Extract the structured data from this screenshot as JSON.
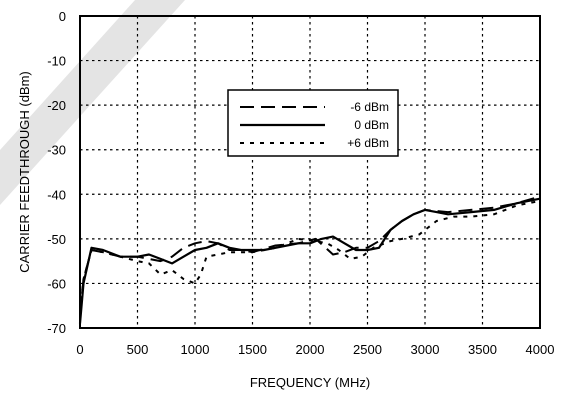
{
  "chart_data": {
    "type": "line",
    "title": "",
    "xlabel": "FREQUENCY (MHz)",
    "ylabel": "CARRIER FEEDTHROUGH (dBm)",
    "xlim": [
      0,
      4000
    ],
    "ylim": [
      -70,
      0
    ],
    "xticks": [
      0,
      500,
      1000,
      1500,
      2000,
      2500,
      3000,
      3500,
      4000
    ],
    "yticks": [
      0,
      -10,
      -20,
      -30,
      -40,
      -50,
      -60,
      -70
    ],
    "grid": true,
    "legend_position": "upper-middle",
    "series": [
      {
        "name": "-6 dBm",
        "style": "long-dash",
        "points": [
          [
            0,
            -67
          ],
          [
            30,
            -59
          ],
          [
            100,
            -52.5
          ],
          [
            200,
            -53
          ],
          [
            350,
            -54
          ],
          [
            500,
            -54
          ],
          [
            600,
            -54.5
          ],
          [
            700,
            -55
          ],
          [
            800,
            -54
          ],
          [
            900,
            -52
          ],
          [
            1000,
            -51
          ],
          [
            1100,
            -50.5
          ],
          [
            1200,
            -51
          ],
          [
            1300,
            -52.5
          ],
          [
            1400,
            -52.5
          ],
          [
            1500,
            -53
          ],
          [
            1700,
            -51.5
          ],
          [
            1900,
            -51
          ],
          [
            2050,
            -50
          ],
          [
            2200,
            -53.5
          ],
          [
            2300,
            -53
          ],
          [
            2400,
            -52
          ],
          [
            2500,
            -52
          ],
          [
            2600,
            -50.5
          ],
          [
            2700,
            -48
          ],
          [
            2800,
            -46
          ],
          [
            2900,
            -44.5
          ],
          [
            3000,
            -43.5
          ],
          [
            3200,
            -44
          ],
          [
            3400,
            -43.5
          ],
          [
            3600,
            -43
          ],
          [
            3800,
            -42
          ],
          [
            4000,
            -40.5
          ]
        ]
      },
      {
        "name": "0 dBm",
        "style": "solid",
        "points": [
          [
            0,
            -69
          ],
          [
            30,
            -60
          ],
          [
            100,
            -52
          ],
          [
            200,
            -52.5
          ],
          [
            350,
            -54
          ],
          [
            500,
            -54
          ],
          [
            600,
            -53.5
          ],
          [
            700,
            -54.5
          ],
          [
            800,
            -55.5
          ],
          [
            900,
            -54
          ],
          [
            1000,
            -52.5
          ],
          [
            1100,
            -52
          ],
          [
            1200,
            -51
          ],
          [
            1300,
            -52
          ],
          [
            1400,
            -52.5
          ],
          [
            1500,
            -52.5
          ],
          [
            1600,
            -52.5
          ],
          [
            1700,
            -52
          ],
          [
            1800,
            -51.5
          ],
          [
            1900,
            -51
          ],
          [
            2000,
            -51
          ],
          [
            2100,
            -50
          ],
          [
            2200,
            -49.5
          ],
          [
            2300,
            -51
          ],
          [
            2400,
            -52.5
          ],
          [
            2500,
            -52.5
          ],
          [
            2600,
            -52
          ],
          [
            2700,
            -48
          ],
          [
            2800,
            -46
          ],
          [
            2900,
            -44.5
          ],
          [
            3000,
            -43.5
          ],
          [
            3100,
            -44
          ],
          [
            3200,
            -44.5
          ],
          [
            3400,
            -44
          ],
          [
            3600,
            -43.5
          ],
          [
            3800,
            -42
          ],
          [
            4000,
            -41
          ]
        ]
      },
      {
        "name": "+6 dBm",
        "style": "dotted",
        "points": [
          [
            0,
            -66
          ],
          [
            30,
            -59
          ],
          [
            100,
            -52.5
          ],
          [
            200,
            -53
          ],
          [
            350,
            -54
          ],
          [
            500,
            -55
          ],
          [
            600,
            -55.5
          ],
          [
            700,
            -58
          ],
          [
            800,
            -57
          ],
          [
            900,
            -59
          ],
          [
            1000,
            -60
          ],
          [
            1050,
            -58
          ],
          [
            1100,
            -54
          ],
          [
            1200,
            -53.5
          ],
          [
            1300,
            -53
          ],
          [
            1400,
            -53
          ],
          [
            1500,
            -53
          ],
          [
            1700,
            -52
          ],
          [
            1900,
            -50
          ],
          [
            2050,
            -50.5
          ],
          [
            2150,
            -51
          ],
          [
            2250,
            -52.5
          ],
          [
            2350,
            -54.5
          ],
          [
            2450,
            -54
          ],
          [
            2550,
            -52
          ],
          [
            2700,
            -50.5
          ],
          [
            2800,
            -50
          ],
          [
            2950,
            -49
          ],
          [
            3100,
            -46
          ],
          [
            3250,
            -45
          ],
          [
            3400,
            -45
          ],
          [
            3600,
            -44.5
          ],
          [
            3800,
            -42.5
          ],
          [
            4000,
            -41.5
          ]
        ]
      }
    ]
  }
}
